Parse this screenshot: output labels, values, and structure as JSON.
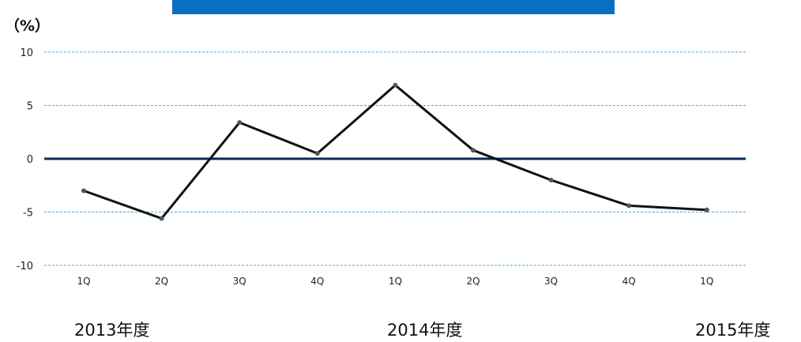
{
  "chart_data": {
    "type": "line",
    "title": "",
    "ylabel": "（%）",
    "ylim": [
      -10,
      10
    ],
    "yticks": [
      10,
      5,
      0,
      -5,
      -10
    ],
    "grid": true,
    "categories": [
      "1Q",
      "2Q",
      "3Q",
      "4Q",
      "1Q",
      "2Q",
      "3Q",
      "4Q",
      "1Q"
    ],
    "values": [
      -3.0,
      -5.6,
      3.4,
      0.5,
      6.9,
      0.8,
      -2.0,
      -4.4,
      -4.8
    ],
    "year_groups": [
      "2013年度",
      "2014年度",
      "2015年度"
    ],
    "colors": {
      "line": "#111111",
      "zero_line": "#0b2a5c",
      "grid": "#4aa3df",
      "title_bar": "#0a6fc2"
    }
  }
}
